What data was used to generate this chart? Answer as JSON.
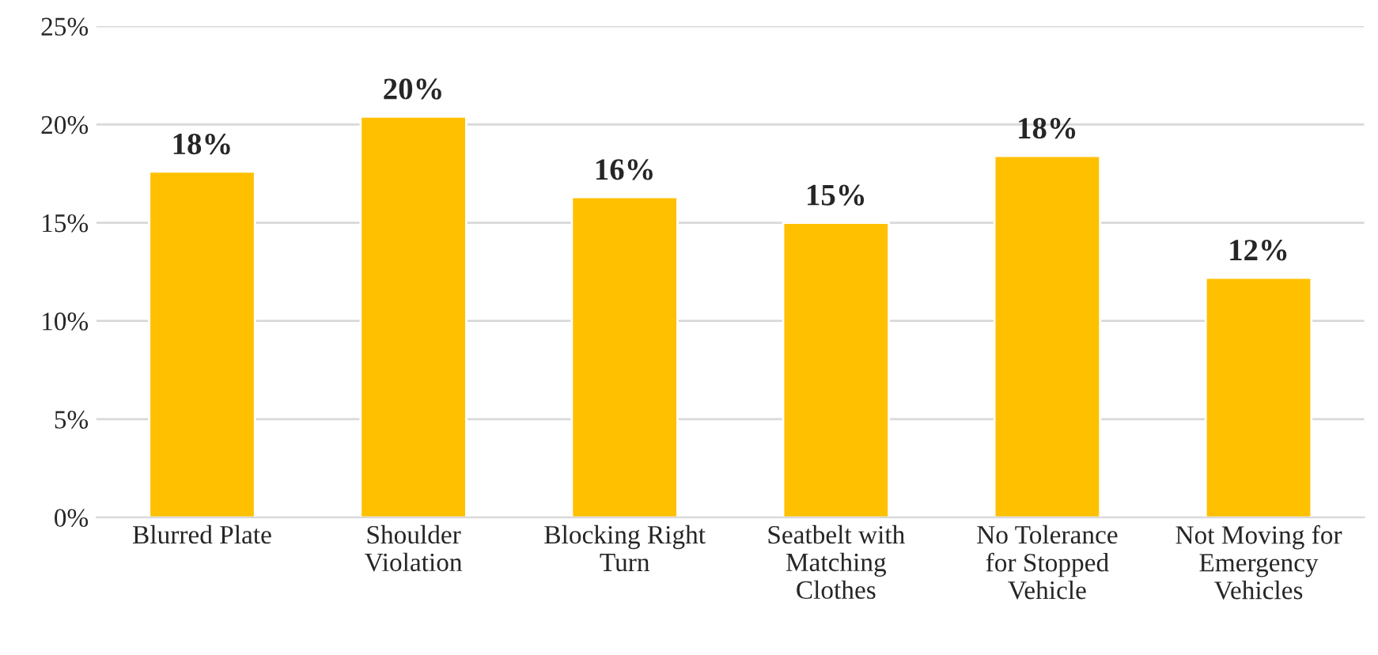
{
  "chart_data": {
    "type": "bar",
    "categories": [
      "Blurred Plate",
      "Shoulder\nViolation",
      "Blocking Right\nTurn",
      "Seatbelt with\nMatching\nClothes",
      "No Tolerance\nfor Stopped\nVehicle",
      "Not Moving for\nEmergency\nVehicles"
    ],
    "values": [
      17.6,
      20.4,
      16.3,
      15.0,
      18.4,
      12.2
    ],
    "value_labels": [
      "18%",
      "20%",
      "16%",
      "15%",
      "18%",
      "12%"
    ],
    "color": "#ffc000",
    "ylim": [
      0,
      25
    ],
    "yticks": [
      {
        "value": 0,
        "label": "0%"
      },
      {
        "value": 5,
        "label": "5%"
      },
      {
        "value": 10,
        "label": "10%"
      },
      {
        "value": 15,
        "label": "15%"
      },
      {
        "value": 20,
        "label": "20%"
      },
      {
        "value": 25,
        "label": "25%"
      }
    ],
    "grid": "y",
    "legend": false
  }
}
